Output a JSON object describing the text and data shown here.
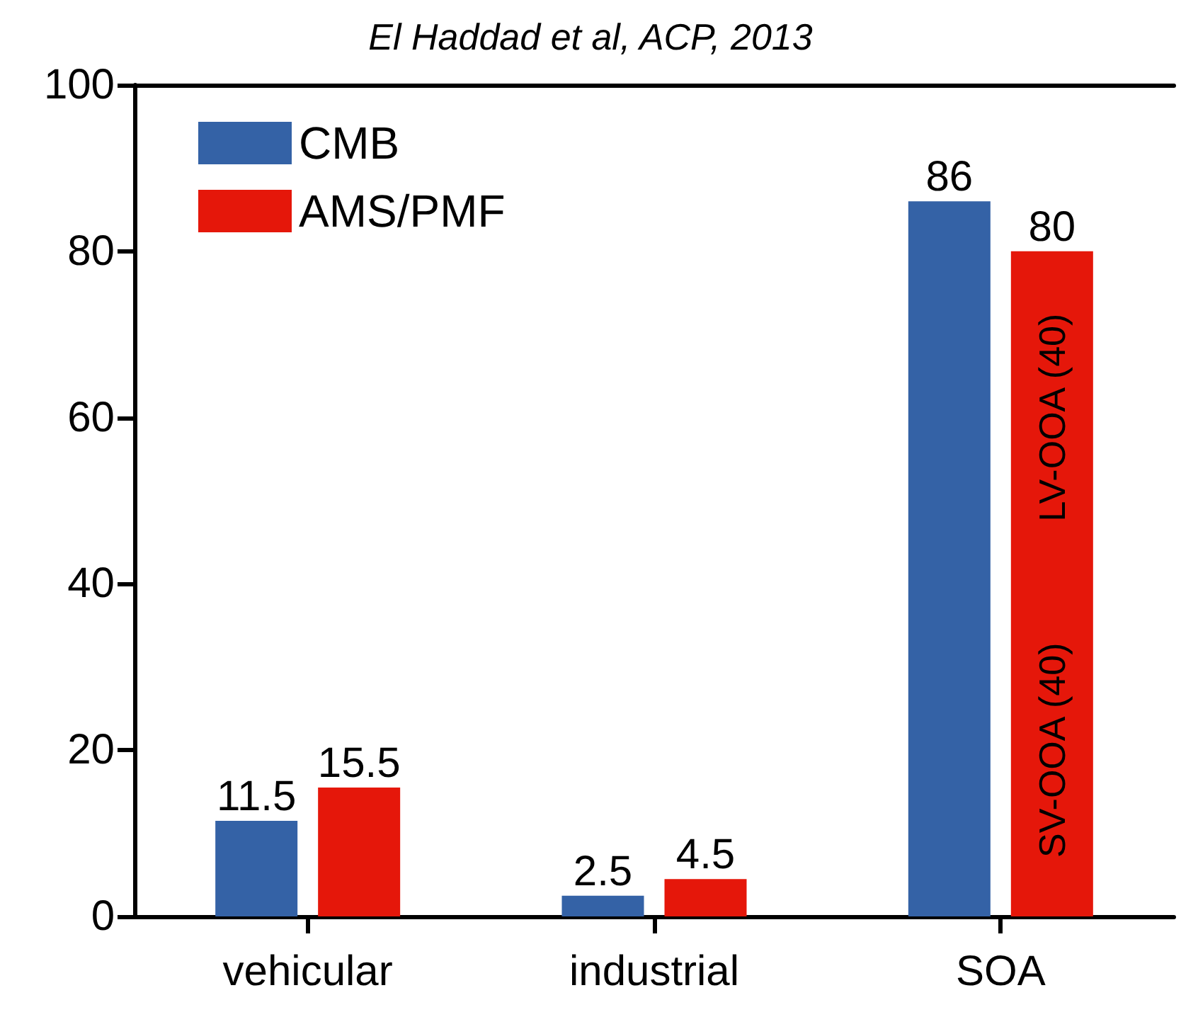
{
  "chart_data": {
    "type": "bar",
    "title": "El Haddad et al, ACP, 2013",
    "categories": [
      "vehicular",
      "industrial",
      "SOA"
    ],
    "series": [
      {
        "name": "CMB",
        "color": "#3462a6",
        "values": [
          11.5,
          2.5,
          86
        ]
      },
      {
        "name": "AMS/PMF",
        "color": "#e5170a",
        "values": [
          15.5,
          4.5,
          80
        ]
      }
    ],
    "annotations": [
      "SV-OOA (40)",
      "LV-OOA (40)"
    ],
    "ylim": [
      0,
      100
    ],
    "yticks": [
      0,
      20,
      40,
      60,
      80,
      100
    ],
    "data_labels": true,
    "legend": "top left",
    "grid": false
  }
}
